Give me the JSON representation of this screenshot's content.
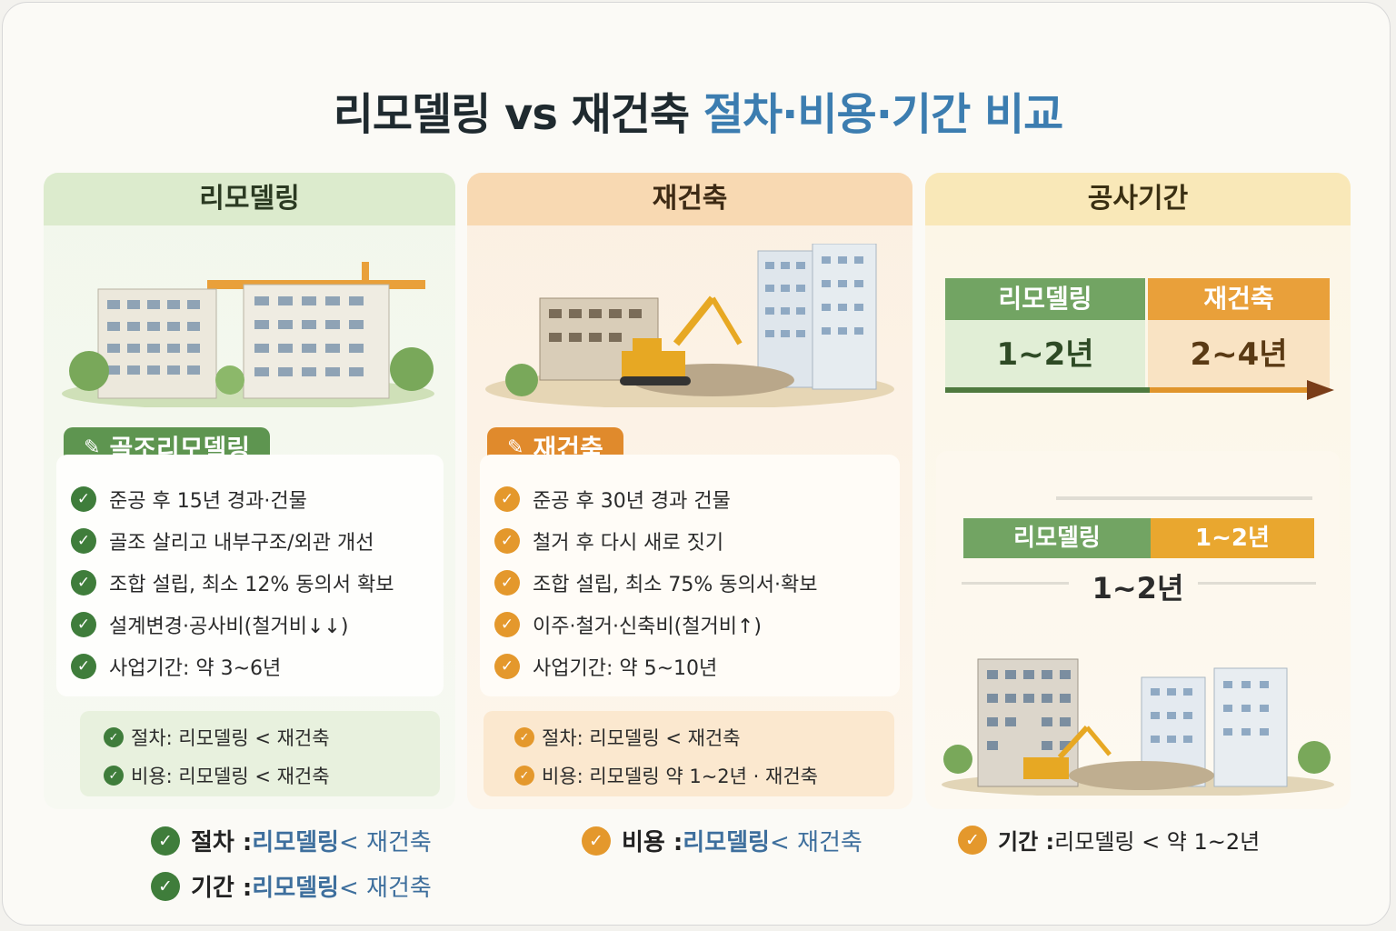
{
  "title": {
    "main": "리모델링 vs 재건축 ",
    "accent": "절차·비용·기간 비교"
  },
  "remodel": {
    "header": "리모델링",
    "tag": "골조리모델링",
    "items": [
      "준공 후 15년 경과·건물",
      "골조 살리고 내부구조/외관 개선",
      "조합 설립, 최소 12% 동의서 확보",
      "설계변경·공사비(철거비↓↓)",
      "사업기간: 약 3~6년"
    ],
    "summary": [
      "절차: 리모델링 < 재건축",
      "비용: 리모델링 < 재건축"
    ]
  },
  "rebuild": {
    "header": "재건축",
    "tag": "재건축",
    "items": [
      "준공 후 30년 경과 건물",
      "철거 후 다시 새로 짓기",
      "조합 설립, 최소 75% 동의서·확보",
      "이주·철거·신축비(철거비↑)",
      "사업기간: 약 5~10년"
    ],
    "summary": [
      "절차: 리모델링 < 재건축",
      "비용: 리모델링 약 1~2년 · 재건축"
    ]
  },
  "period": {
    "header": "공사기간",
    "remodel_label": "리모델링",
    "remodel_value": "1~2년",
    "rebuild_label": "재건축",
    "rebuild_value": "2~4년",
    "mini_label": "리모델링",
    "mini_value": "1~2년",
    "mini_total": "1~2년"
  },
  "bottom": {
    "b1": {
      "key": "절차 : ",
      "value": "리모델링 ",
      "rest": "< 재건축"
    },
    "b2": {
      "key": "비용 : ",
      "value": "리모델링 ",
      "rest": "< 재건축"
    },
    "b3": {
      "key": "기간 : ",
      "value": "리모델링 < 약 1~2년"
    },
    "b4": {
      "key": "기간 : ",
      "value": "리모델링 ",
      "rest": "< 재건축"
    }
  },
  "colors": {
    "green": "#5e9550",
    "orange": "#e08a2c",
    "blue": "#3c7db0",
    "arrow": "#7a3d18"
  }
}
